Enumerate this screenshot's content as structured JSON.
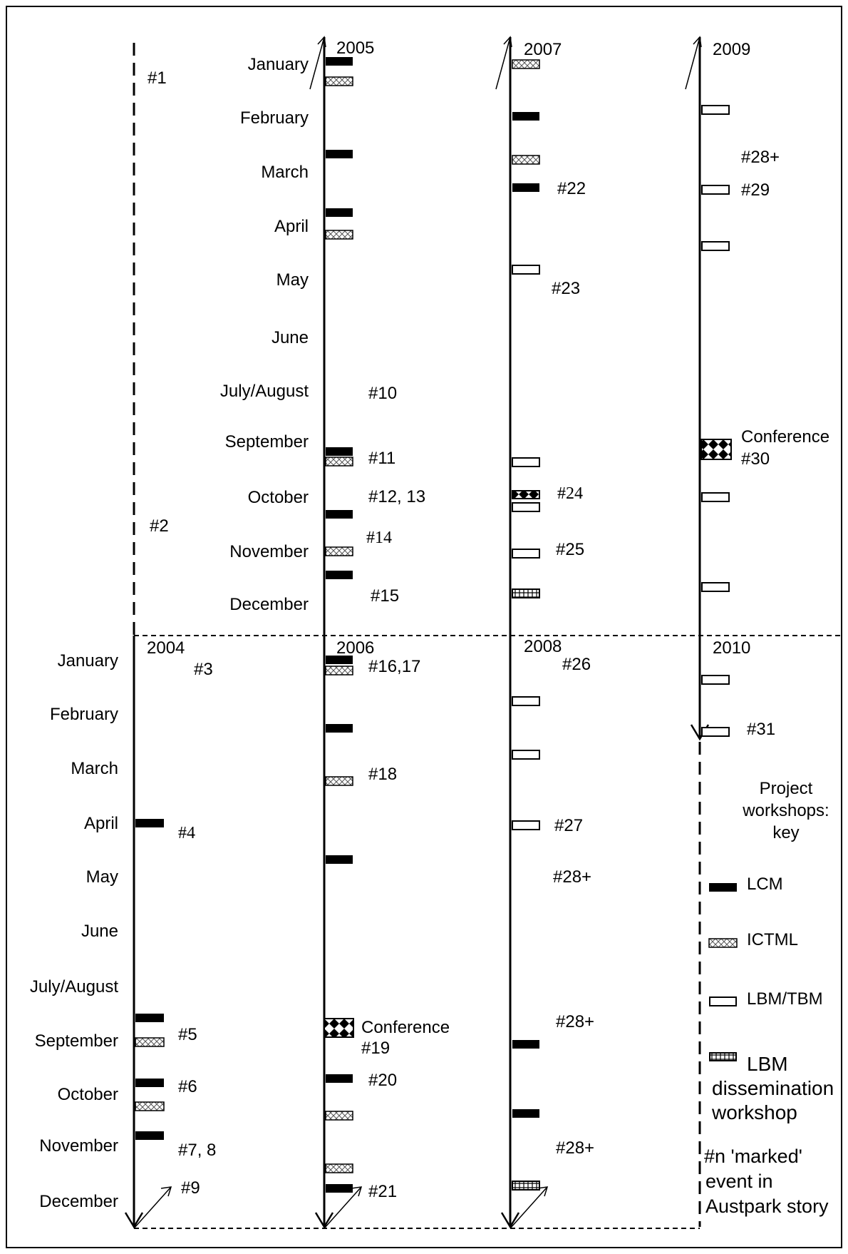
{
  "months": [
    "January",
    "February",
    "March",
    "April",
    "May",
    "June",
    "July/August",
    "September",
    "October",
    "November",
    "December"
  ],
  "years": [
    "2004",
    "2005",
    "2006",
    "2007",
    "2008",
    "2009",
    "2010"
  ],
  "events": {
    "e1": "#1",
    "e2": "#2",
    "e3": "#3",
    "e4": "#4",
    "e5": "#5",
    "e6": "#6",
    "e7_8": "#7, 8",
    "e9": "#9",
    "e10": "#10",
    "e11": "#11",
    "e12_13": "#12, 13",
    "e14": "#14",
    "e15": "#15",
    "e16_17": "#16,17",
    "e18": "#18",
    "e19": "#19",
    "e20": "#20",
    "e21": "#21",
    "e22": "#22",
    "e23": "#23",
    "e24": "#24",
    "e25": "#25",
    "e26": "#26",
    "e27": "#27",
    "e28plus": "#28+",
    "e29": "#29",
    "e30": "#30",
    "e31": "#31"
  },
  "conference_label": "Conference",
  "key": {
    "title_lines": [
      "Project",
      "workshops:",
      "key"
    ],
    "lcm": "LCM",
    "ictml": "ICTML",
    "lbm_tbm": "LBM/TBM",
    "lbm_dissemination_lines": [
      "LBM",
      "dissemination",
      "workshop"
    ],
    "marked_event_lines": [
      "#n 'marked'",
      "event in",
      "Austpark story"
    ]
  },
  "colors": {
    "line": "#000000",
    "lcm_fill": "#000000",
    "lbm_fill": "#ffffff"
  }
}
